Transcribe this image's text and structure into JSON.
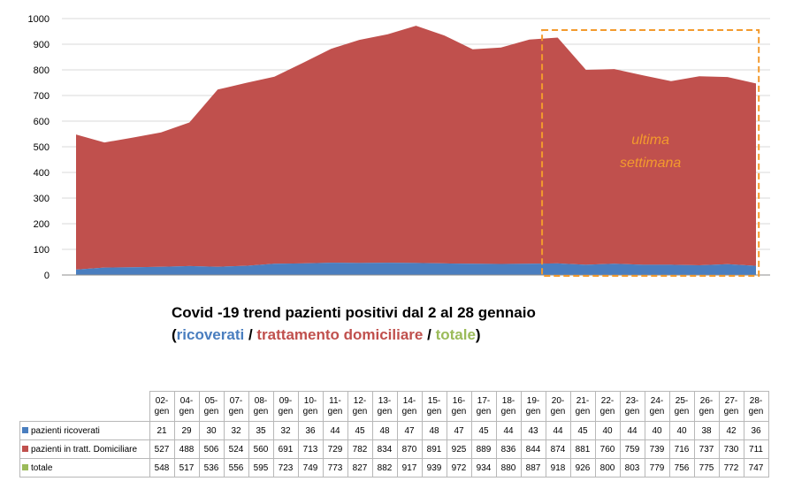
{
  "chart_data": {
    "type": "area",
    "stacked": true,
    "categories": [
      "02-gen",
      "04-gen",
      "05-gen",
      "07-gen",
      "08-gen",
      "09-gen",
      "10-gen",
      "11-gen",
      "12-gen",
      "13-gen",
      "14-gen",
      "15-gen",
      "16-gen",
      "17-gen",
      "18-gen",
      "19-gen",
      "20-gen",
      "21-gen",
      "22-gen",
      "23-gen",
      "24-gen",
      "25-gen",
      "26-gen",
      "27-gen",
      "28-gen"
    ],
    "ylim": [
      0,
      1000
    ],
    "yticks": [
      "0",
      "100",
      "200",
      "300",
      "400",
      "500",
      "600",
      "700",
      "800",
      "900",
      "1000"
    ],
    "grid": true,
    "series": [
      {
        "name": "pazienti ricoverati",
        "color": "#4a7ebf",
        "values": [
          21,
          29,
          30,
          32,
          35,
          32,
          36,
          44,
          45,
          48,
          47,
          48,
          47,
          45,
          44,
          43,
          44,
          45,
          40,
          44,
          40,
          40,
          38,
          42,
          36
        ]
      },
      {
        "name": "pazienti in tratt. Domiciliare",
        "color": "#c0504d",
        "values": [
          527,
          488,
          506,
          524,
          560,
          691,
          713,
          729,
          782,
          834,
          870,
          891,
          925,
          889,
          836,
          844,
          874,
          881,
          760,
          759,
          739,
          716,
          737,
          730,
          711
        ]
      },
      {
        "name": "totale",
        "color": "#9bbb59",
        "values": [
          548,
          517,
          536,
          556,
          595,
          723,
          749,
          773,
          827,
          882,
          917,
          939,
          972,
          934,
          880,
          887,
          918,
          926,
          800,
          803,
          779,
          756,
          775,
          772,
          747
        ]
      }
    ],
    "title": "Covid -19 trend pazienti positivi dal 2 al 28 gennaio",
    "subtitle": {
      "open": "(",
      "ricoverati": "ricoverati",
      "sep1": " / ",
      "domiciliare": "trattamento domiciliare",
      "sep2": " / ",
      "totale": "totale",
      "close": ")"
    },
    "annotation": {
      "line1": "ultima",
      "line2": "settimana",
      "color": "#f39a2d",
      "from_category": "21-gen",
      "to_category": "28-gen"
    }
  }
}
